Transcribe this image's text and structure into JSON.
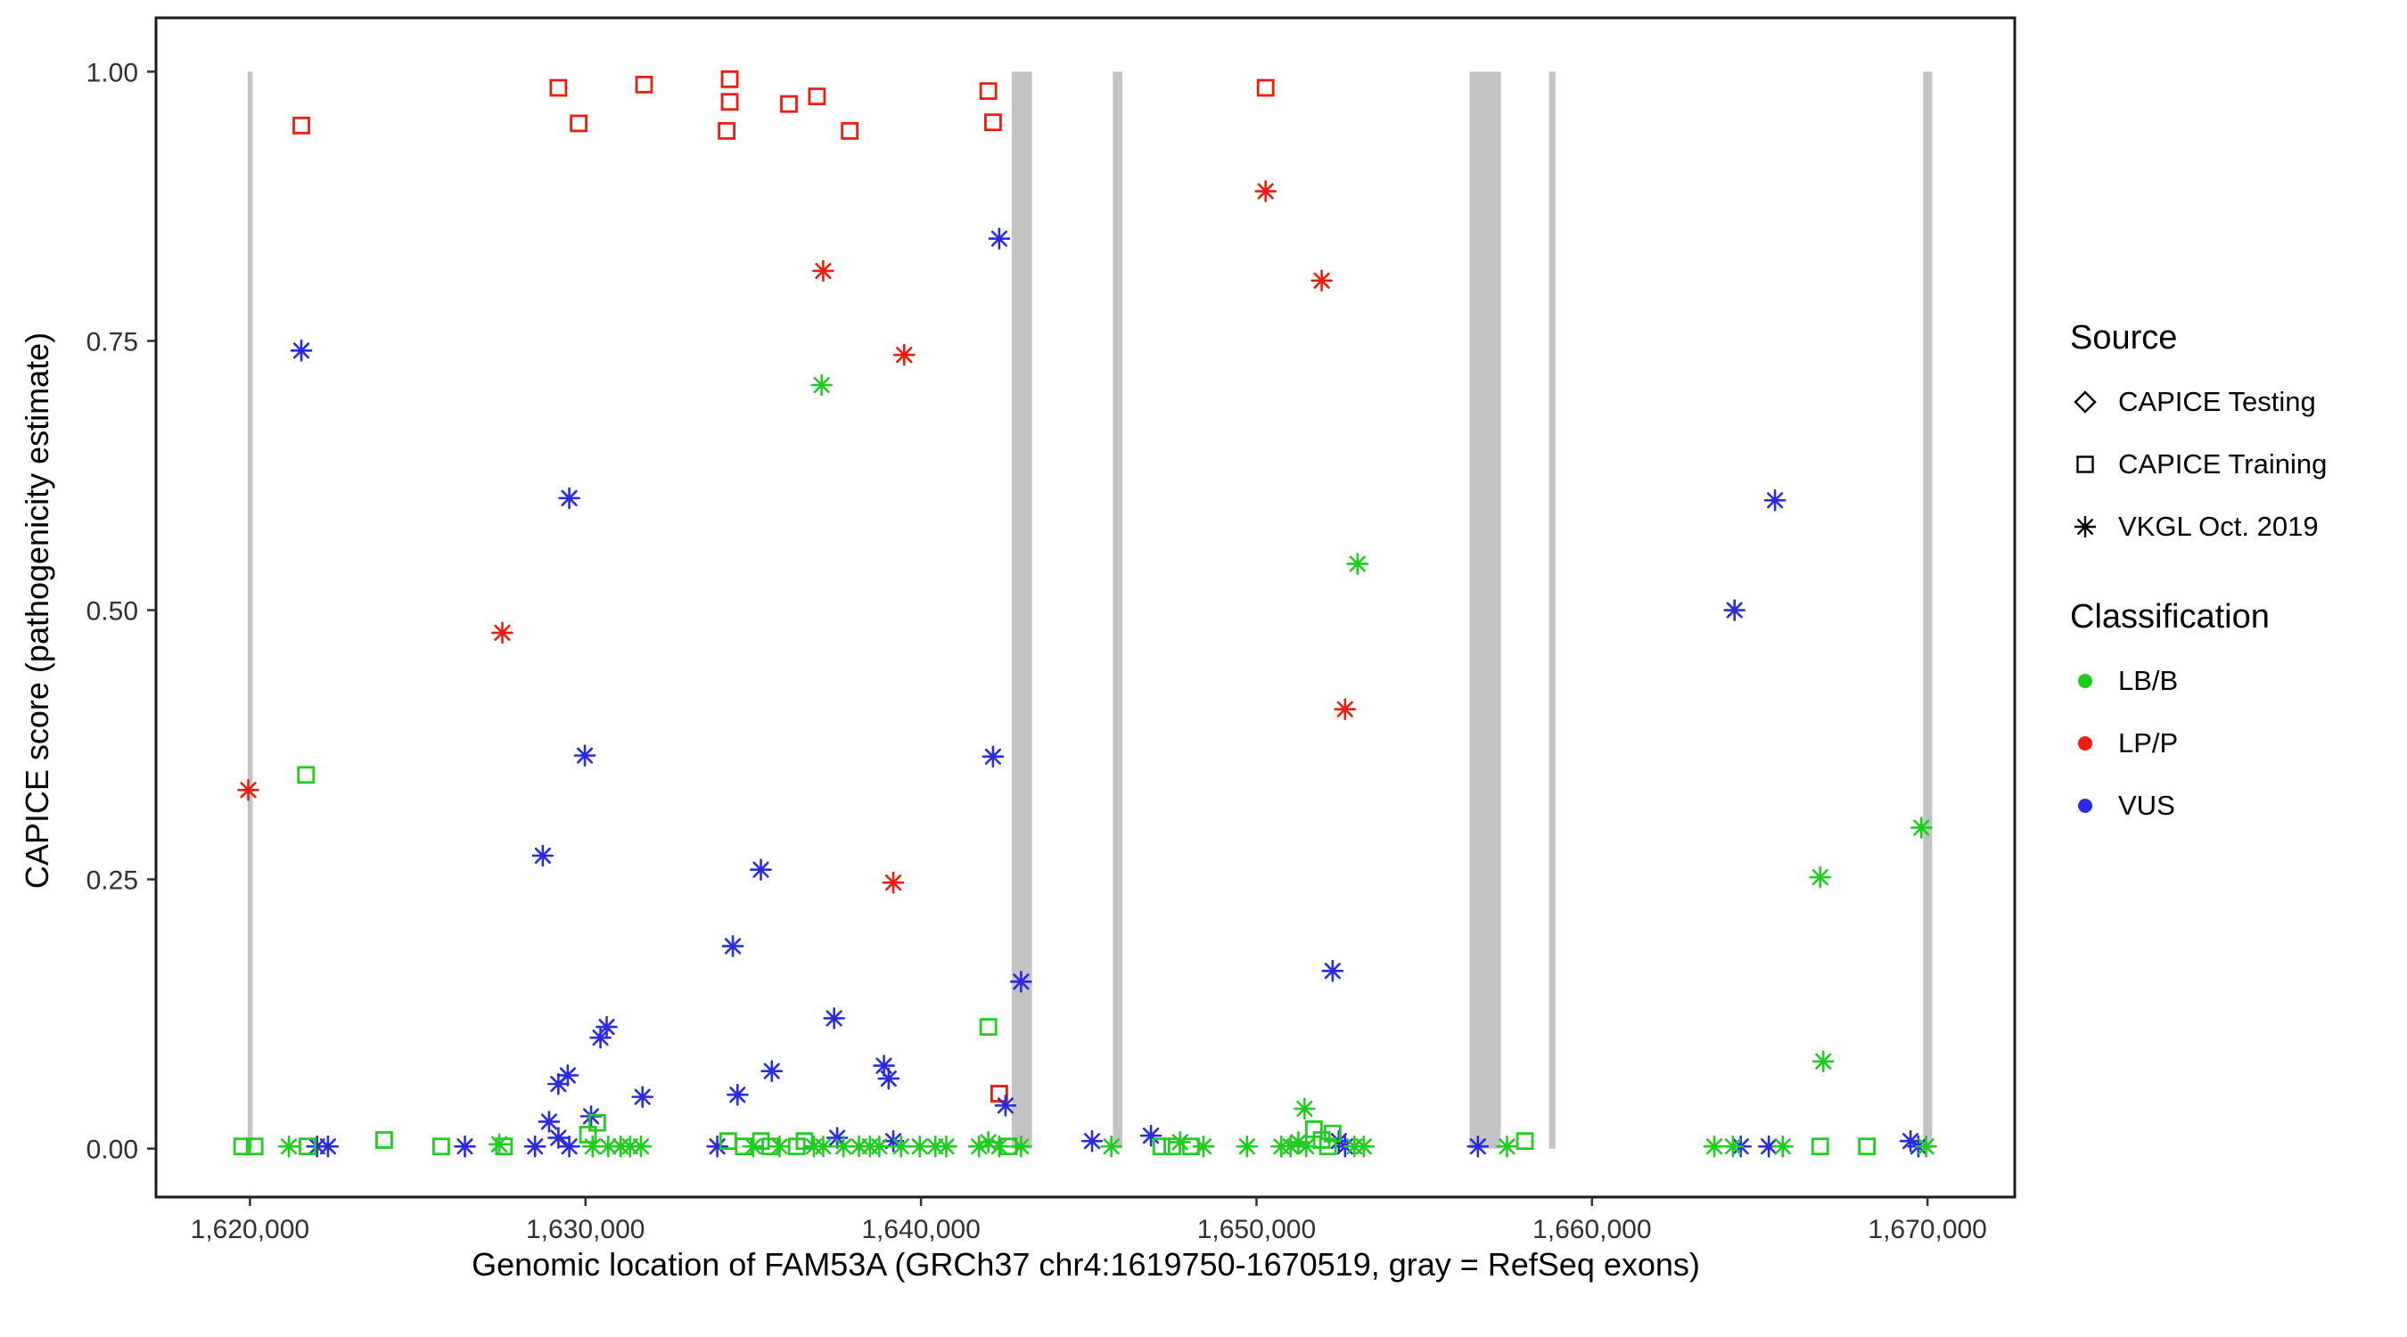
{
  "legend": {
    "source_title": "Source",
    "source_items": [
      "CAPICE Testing",
      "CAPICE Training",
      "VKGL Oct. 2019"
    ],
    "classification_title": "Classification",
    "classification_items": [
      "LB/B",
      "LP/P",
      "VUS"
    ]
  },
  "chart_data": {
    "type": "scatter",
    "title": "",
    "xlabel": "Genomic location of FAM53A (GRCh37 chr4:1619750-1670519, gray = RefSeq exons)",
    "ylabel": "CAPICE score (pathogenicity estimate)",
    "xlim": [
      1617200,
      1672600
    ],
    "ylim": [
      -0.045,
      1.05
    ],
    "x_ticks": [
      1620000,
      1630000,
      1640000,
      1650000,
      1660000,
      1670000
    ],
    "x_tick_labels": [
      "1,620,000",
      "1,630,000",
      "1,640,000",
      "1,650,000",
      "1,660,000",
      "1,670,000"
    ],
    "y_ticks": [
      0.0,
      0.25,
      0.5,
      0.75,
      1.0
    ],
    "y_tick_labels": [
      "0.00",
      "0.25",
      "0.50",
      "0.75",
      "1.00"
    ],
    "grid": false,
    "legend_position": "right",
    "exon_color": "#c3c3c3",
    "class_colors": {
      "LB/B": "#21cc21",
      "LP/P": "#ec1c10",
      "VUS": "#2a2ae0"
    },
    "marker_shapes": {
      "CAPICE Testing": "diamond",
      "CAPICE Training": "square",
      "VKGL Oct. 2019": "asterisk"
    },
    "exons": [
      {
        "start": 1619930,
        "end": 1620080
      },
      {
        "start": 1642705,
        "end": 1643310
      },
      {
        "start": 1645720,
        "end": 1646000
      },
      {
        "start": 1656350,
        "end": 1657280
      },
      {
        "start": 1658720,
        "end": 1658910
      },
      {
        "start": 1669870,
        "end": 1670140
      }
    ],
    "series": [
      {
        "name": "LP/P — CAPICE Training",
        "class": "LP/P",
        "source": "CAPICE Training",
        "marker": "square",
        "points": [
          [
            1621532,
            0.95
          ],
          [
            1629193,
            0.985
          ],
          [
            1629797,
            0.952
          ],
          [
            1631747,
            0.988
          ],
          [
            1634300,
            0.993
          ],
          [
            1634300,
            0.972
          ],
          [
            1634208,
            0.945
          ],
          [
            1636065,
            0.97
          ],
          [
            1636900,
            0.977
          ],
          [
            1637876,
            0.945
          ],
          [
            1642008,
            0.982
          ],
          [
            1642147,
            0.953
          ],
          [
            1650272,
            0.985
          ],
          [
            1642333,
            0.051
          ]
        ]
      },
      {
        "name": "LP/P — VKGL Oct. 2019",
        "class": "LP/P",
        "source": "VKGL Oct. 2019",
        "marker": "asterisk",
        "points": [
          [
            1619950,
            0.333
          ],
          [
            1627522,
            0.479
          ],
          [
            1637086,
            0.815
          ],
          [
            1639501,
            0.737
          ],
          [
            1639176,
            0.247
          ],
          [
            1650272,
            0.889
          ],
          [
            1651944,
            0.806
          ],
          [
            1652640,
            0.408
          ]
        ]
      },
      {
        "name": "VUS — VKGL Oct. 2019",
        "class": "VUS",
        "source": "VKGL Oct. 2019",
        "marker": "asterisk",
        "points": [
          [
            1621532,
            0.741
          ],
          [
            1629518,
            0.604
          ],
          [
            1642333,
            0.845
          ],
          [
            1629982,
            0.365
          ],
          [
            1642147,
            0.364
          ],
          [
            1628729,
            0.272
          ],
          [
            1635229,
            0.259
          ],
          [
            1634393,
            0.188
          ],
          [
            1642983,
            0.155
          ],
          [
            1652269,
            0.165
          ],
          [
            1665455,
            0.602
          ],
          [
            1664248,
            0.5
          ],
          [
            1630632,
            0.113
          ],
          [
            1630447,
            0.103
          ],
          [
            1637411,
            0.121
          ],
          [
            1638897,
            0.077
          ],
          [
            1639036,
            0.065
          ],
          [
            1635554,
            0.072
          ],
          [
            1634533,
            0.05
          ],
          [
            1631700,
            0.048
          ],
          [
            1629472,
            0.068
          ],
          [
            1629193,
            0.06
          ],
          [
            1628915,
            0.025
          ],
          [
            1642519,
            0.04
          ],
          [
            1630168,
            0.03
          ],
          [
            1622000,
            0.002
          ],
          [
            1622325,
            0.002
          ],
          [
            1626407,
            0.002
          ],
          [
            1628497,
            0.002
          ],
          [
            1629193,
            0.01
          ],
          [
            1629518,
            0.002
          ],
          [
            1633929,
            0.002
          ],
          [
            1637504,
            0.01
          ],
          [
            1639176,
            0.007
          ],
          [
            1645100,
            0.007
          ],
          [
            1646855,
            0.012
          ],
          [
            1652455,
            0.007
          ],
          [
            1652640,
            0.002
          ],
          [
            1656600,
            0.002
          ],
          [
            1664433,
            0.002
          ],
          [
            1665269,
            0.002
          ],
          [
            1669494,
            0.007
          ],
          [
            1669726,
            0.002
          ]
        ]
      },
      {
        "name": "LB/B — VKGL Oct. 2019",
        "class": "LB/B",
        "source": "VKGL Oct. 2019",
        "marker": "asterisk",
        "points": [
          [
            1637040,
            0.709
          ],
          [
            1653012,
            0.543
          ],
          [
            1669819,
            0.298
          ],
          [
            1666801,
            0.252
          ],
          [
            1666894,
            0.081
          ],
          [
            1651433,
            0.037
          ],
          [
            1621161,
            0.002
          ],
          [
            1627430,
            0.004
          ],
          [
            1630214,
            0.002
          ],
          [
            1630679,
            0.002
          ],
          [
            1631050,
            0.002
          ],
          [
            1631329,
            0.002
          ],
          [
            1631654,
            0.002
          ],
          [
            1635000,
            0.002
          ],
          [
            1635786,
            0.002
          ],
          [
            1636808,
            0.002
          ],
          [
            1637086,
            0.002
          ],
          [
            1637690,
            0.002
          ],
          [
            1638154,
            0.002
          ],
          [
            1638479,
            0.002
          ],
          [
            1638758,
            0.002
          ],
          [
            1639408,
            0.002
          ],
          [
            1639965,
            0.002
          ],
          [
            1640429,
            0.002
          ],
          [
            1640754,
            0.002
          ],
          [
            1641729,
            0.002
          ],
          [
            1642008,
            0.006
          ],
          [
            1642333,
            0.002
          ],
          [
            1642983,
            0.002
          ],
          [
            1645675,
            0.002
          ],
          [
            1647723,
            0.006
          ],
          [
            1648419,
            0.002
          ],
          [
            1649719,
            0.002
          ],
          [
            1650741,
            0.002
          ],
          [
            1651015,
            0.002
          ],
          [
            1651248,
            0.006
          ],
          [
            1651480,
            0.002
          ],
          [
            1652919,
            0.002
          ],
          [
            1653198,
            0.002
          ],
          [
            1657467,
            0.002
          ],
          [
            1663644,
            0.002
          ],
          [
            1664201,
            0.002
          ],
          [
            1665687,
            0.002
          ],
          [
            1669958,
            0.002
          ]
        ]
      },
      {
        "name": "LB/B — CAPICE Training",
        "class": "LB/B",
        "source": "CAPICE Training",
        "marker": "square",
        "points": [
          [
            1621671,
            0.347
          ],
          [
            1642008,
            0.113
          ],
          [
            1619768,
            0.002
          ],
          [
            1620140,
            0.002
          ],
          [
            1621717,
            0.002
          ],
          [
            1624000,
            0.008
          ],
          [
            1625700,
            0.002
          ],
          [
            1627570,
            0.002
          ],
          [
            1630075,
            0.013
          ],
          [
            1630350,
            0.024
          ],
          [
            1634254,
            0.007
          ],
          [
            1634718,
            0.002
          ],
          [
            1635229,
            0.007
          ],
          [
            1635508,
            0.002
          ],
          [
            1636297,
            0.002
          ],
          [
            1636529,
            0.007
          ],
          [
            1642612,
            0.002
          ],
          [
            1647166,
            0.002
          ],
          [
            1647491,
            0.002
          ],
          [
            1648048,
            0.002
          ],
          [
            1651712,
            0.018
          ],
          [
            1651944,
            0.008
          ],
          [
            1652130,
            0.002
          ],
          [
            1652269,
            0.014
          ],
          [
            1658000,
            0.007
          ],
          [
            1666801,
            0.002
          ],
          [
            1668194,
            0.002
          ]
        ]
      }
    ]
  }
}
